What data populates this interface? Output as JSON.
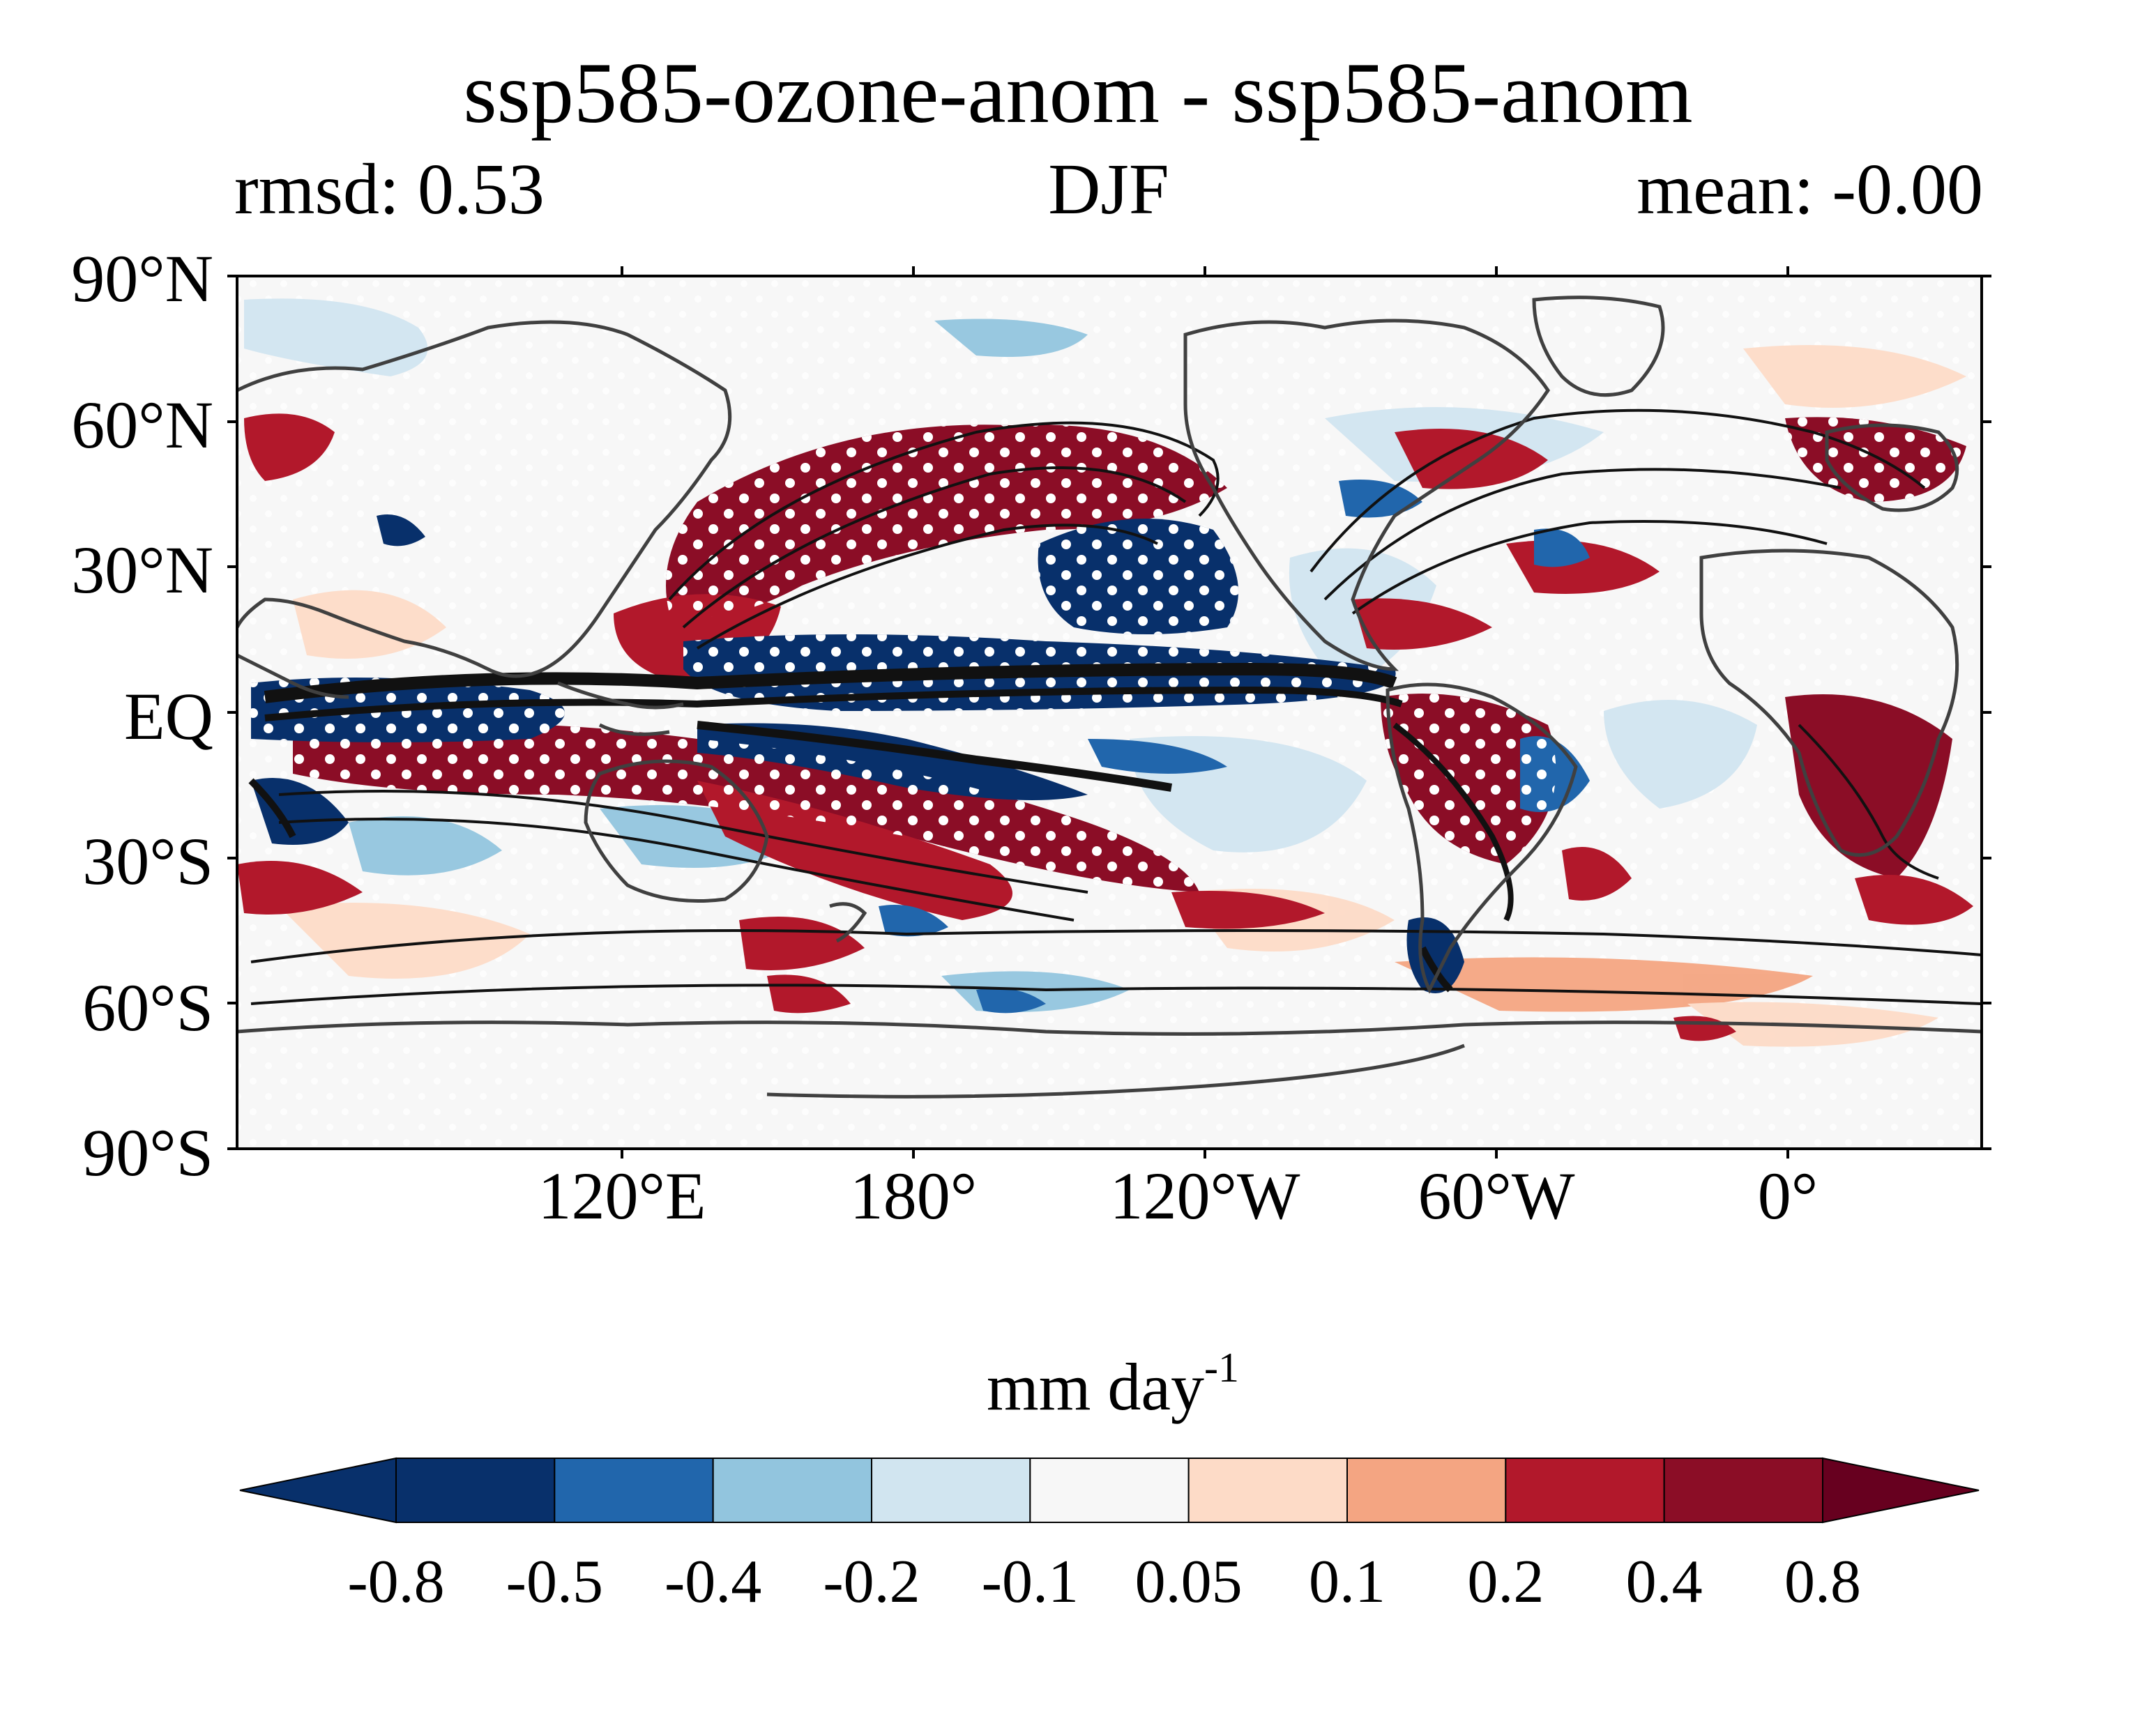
{
  "header": {
    "title": "ssp585-ozone-anom - ssp585-anom",
    "left": "rmsd: 0.53",
    "center": "DJF",
    "right": "mean: -0.00"
  },
  "map": {
    "projection": "PlateCarree",
    "central_longitude": 150,
    "lat_ticks": [
      "90°N",
      "60°N",
      "30°N",
      "EQ",
      "30°S",
      "60°S",
      "90°S"
    ],
    "lon_ticks": [
      "120°E",
      "180°",
      "120°W",
      "60°W",
      "0°"
    ],
    "field": "precipitation difference",
    "stippling": "significance (white dots)",
    "contours": "black climatology contours",
    "coastline_color": "#404040"
  },
  "colorbar": {
    "label": "mm day",
    "label_exponent": "-1",
    "ticks": [
      "-0.8",
      "-0.5",
      "-0.4",
      "-0.2",
      "-0.1",
      "0.05",
      "0.1",
      "0.2",
      "0.4",
      "0.8"
    ],
    "colors": [
      "#08306b",
      "#08306b",
      "#2166ac",
      "#92c5de",
      "#d1e5f0",
      "#f7f7f7",
      "#fddbc7",
      "#f4a582",
      "#b2182b",
      "#8b0d26",
      "#67001f"
    ],
    "extend": "both"
  },
  "palette": {
    "deep_blue": "#08306b",
    "blue": "#2166ac",
    "light_blue": "#92c5de",
    "pale_blue": "#d1e5f0",
    "neutral": "#f7f7f7",
    "pale_red": "#fddbc7",
    "light_red": "#f4a582",
    "red": "#b2182b",
    "dark_red": "#8b0d26"
  }
}
